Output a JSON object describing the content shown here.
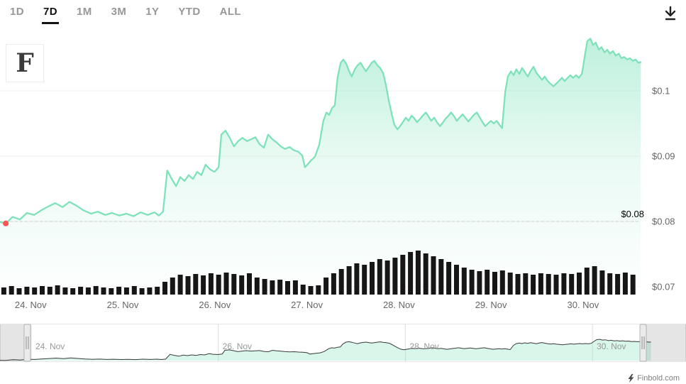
{
  "toolbar": {
    "ranges": [
      {
        "label": "1D",
        "active": false
      },
      {
        "label": "7D",
        "active": true
      },
      {
        "label": "1M",
        "active": false
      },
      {
        "label": "3M",
        "active": false
      },
      {
        "label": "1Y",
        "active": false
      },
      {
        "label": "YTD",
        "active": false
      },
      {
        "label": "ALL",
        "active": false
      }
    ]
  },
  "watermark": {
    "letter": "F"
  },
  "credit": {
    "text": "Finbold.com"
  },
  "colors": {
    "line": "#7de2ba",
    "fill_top": "rgba(125,226,186,0.50)",
    "fill_mid": "rgba(125,226,186,0.16)",
    "fill_bottom": "rgba(125,226,186,0.02)",
    "volume": "#161616",
    "marker": "#ff5353",
    "grid": "#f0f0f0",
    "dashed_line": "#cfcfcf",
    "plotline_label": "#000000",
    "axis_label": "#666666",
    "nav_line": "#3a3a3a",
    "nav_fill": "rgba(125,226,186,0.30)",
    "nav_grid": "#dedede",
    "nav_border": "#e6e6e6",
    "nav_mask": "rgba(0,0,0,0.10)",
    "nav_label": "#999999"
  },
  "chart_data": {
    "type": "line",
    "title": "",
    "legend": "off",
    "grid": "on",
    "y_axis_side": "right",
    "x_range_hours": [
      0,
      167
    ],
    "x_ticks": [
      {
        "t": 8,
        "label": "24. Nov"
      },
      {
        "t": 32,
        "label": "25. Nov"
      },
      {
        "t": 56,
        "label": "26. Nov"
      },
      {
        "t": 80,
        "label": "27. Nov"
      },
      {
        "t": 104,
        "label": "28. Nov"
      },
      {
        "t": 128,
        "label": "29. Nov"
      },
      {
        "t": 152,
        "label": "30. Nov"
      }
    ],
    "y_ticks": [
      {
        "price": 0.1,
        "label": "$0.1"
      },
      {
        "price": 0.09,
        "label": "$0.09"
      },
      {
        "price": 0.08,
        "label": "$0.08"
      },
      {
        "price": 0.07,
        "label": "$0.07"
      }
    ],
    "ylim": [
      0.07,
      0.109
    ],
    "plot_line": {
      "price": 0.08,
      "label": "$0.08"
    },
    "start_marker": {
      "t": 1.5,
      "price": 0.0797
    },
    "series": [
      {
        "name": "Price",
        "type": "area",
        "points": [
          [
            0,
            0.0799
          ],
          [
            1.5,
            0.0797
          ],
          [
            3.3,
            0.0807
          ],
          [
            5.2,
            0.0803
          ],
          [
            7,
            0.0813
          ],
          [
            8.9,
            0.081
          ],
          [
            10.7,
            0.0817
          ],
          [
            12.6,
            0.0823
          ],
          [
            14.4,
            0.0828
          ],
          [
            16.3,
            0.0822
          ],
          [
            18.1,
            0.083
          ],
          [
            20,
            0.0824
          ],
          [
            21.8,
            0.0817
          ],
          [
            23.7,
            0.0812
          ],
          [
            25.5,
            0.0815
          ],
          [
            27.4,
            0.081
          ],
          [
            29.2,
            0.0813
          ],
          [
            31.1,
            0.0809
          ],
          [
            32.9,
            0.0812
          ],
          [
            34.8,
            0.0808
          ],
          [
            36.6,
            0.0814
          ],
          [
            38.5,
            0.081
          ],
          [
            40.3,
            0.0814
          ],
          [
            41.4,
            0.0809
          ],
          [
            42.5,
            0.0815
          ],
          [
            43.6,
            0.0878
          ],
          [
            44.8,
            0.0865
          ],
          [
            45.9,
            0.0854
          ],
          [
            47,
            0.0868
          ],
          [
            48.1,
            0.0862
          ],
          [
            49.2,
            0.0871
          ],
          [
            50.3,
            0.0865
          ],
          [
            51.4,
            0.0876
          ],
          [
            52.5,
            0.0871
          ],
          [
            53.6,
            0.0887
          ],
          [
            54.7,
            0.088
          ],
          [
            55.9,
            0.0876
          ],
          [
            57,
            0.0883
          ],
          [
            57.7,
            0.0933
          ],
          [
            58.8,
            0.0939
          ],
          [
            59.9,
            0.0928
          ],
          [
            61,
            0.0915
          ],
          [
            62.1,
            0.0923
          ],
          [
            63.2,
            0.0928
          ],
          [
            64.4,
            0.0923
          ],
          [
            65.5,
            0.0926
          ],
          [
            66.6,
            0.0929
          ],
          [
            67.7,
            0.0918
          ],
          [
            68.8,
            0.0913
          ],
          [
            69.9,
            0.0933
          ],
          [
            71,
            0.0926
          ],
          [
            72.1,
            0.0921
          ],
          [
            73.2,
            0.0915
          ],
          [
            74.3,
            0.0911
          ],
          [
            75.5,
            0.0914
          ],
          [
            76.6,
            0.0909
          ],
          [
            77.7,
            0.0907
          ],
          [
            78.8,
            0.0901
          ],
          [
            79.5,
            0.0883
          ],
          [
            80.3,
            0.0888
          ],
          [
            81,
            0.0893
          ],
          [
            82.1,
            0.0899
          ],
          [
            83.2,
            0.0917
          ],
          [
            84.3,
            0.0954
          ],
          [
            85.1,
            0.0967
          ],
          [
            85.8,
            0.0963
          ],
          [
            86.6,
            0.0974
          ],
          [
            87.3,
            0.0978
          ],
          [
            88,
            0.102
          ],
          [
            88.8,
            0.1043
          ],
          [
            89.5,
            0.1048
          ],
          [
            90.3,
            0.1041
          ],
          [
            91,
            0.103
          ],
          [
            91.7,
            0.1022
          ],
          [
            92.5,
            0.1033
          ],
          [
            93.2,
            0.1039
          ],
          [
            94,
            0.1043
          ],
          [
            94.7,
            0.1036
          ],
          [
            95.4,
            0.103
          ],
          [
            96.2,
            0.1037
          ],
          [
            96.9,
            0.1043
          ],
          [
            97.6,
            0.1046
          ],
          [
            98.4,
            0.1039
          ],
          [
            99.1,
            0.1035
          ],
          [
            99.9,
            0.1027
          ],
          [
            100.6,
            0.1009
          ],
          [
            101.3,
            0.0987
          ],
          [
            102.1,
            0.0965
          ],
          [
            102.8,
            0.0948
          ],
          [
            103.6,
            0.0941
          ],
          [
            104.3,
            0.0946
          ],
          [
            105,
            0.0952
          ],
          [
            105.8,
            0.0959
          ],
          [
            106.5,
            0.0954
          ],
          [
            107.3,
            0.0962
          ],
          [
            108,
            0.0958
          ],
          [
            108.7,
            0.0952
          ],
          [
            109.5,
            0.0957
          ],
          [
            110.2,
            0.0962
          ],
          [
            111,
            0.0967
          ],
          [
            111.7,
            0.0961
          ],
          [
            112.4,
            0.0954
          ],
          [
            113.2,
            0.0959
          ],
          [
            113.9,
            0.0952
          ],
          [
            114.7,
            0.0946
          ],
          [
            115.4,
            0.0951
          ],
          [
            116.1,
            0.0957
          ],
          [
            116.9,
            0.0962
          ],
          [
            117.6,
            0.0967
          ],
          [
            118.4,
            0.0961
          ],
          [
            119.1,
            0.0954
          ],
          [
            119.8,
            0.0959
          ],
          [
            120.6,
            0.0964
          ],
          [
            121.3,
            0.0959
          ],
          [
            122.1,
            0.0953
          ],
          [
            122.8,
            0.0958
          ],
          [
            123.5,
            0.0963
          ],
          [
            124.3,
            0.0967
          ],
          [
            125,
            0.096
          ],
          [
            125.8,
            0.0952
          ],
          [
            126.5,
            0.0946
          ],
          [
            127.2,
            0.095
          ],
          [
            128,
            0.0954
          ],
          [
            128.7,
            0.095
          ],
          [
            129.5,
            0.0954
          ],
          [
            130.2,
            0.0948
          ],
          [
            130.9,
            0.0943
          ],
          [
            131.7,
            0.0998
          ],
          [
            132.4,
            0.1022
          ],
          [
            133.2,
            0.103
          ],
          [
            133.9,
            0.1024
          ],
          [
            134.6,
            0.1033
          ],
          [
            135.4,
            0.1026
          ],
          [
            136.1,
            0.1035
          ],
          [
            136.9,
            0.1028
          ],
          [
            137.6,
            0.1022
          ],
          [
            138.3,
            0.103
          ],
          [
            139.1,
            0.1037
          ],
          [
            139.8,
            0.1028
          ],
          [
            140.6,
            0.1022
          ],
          [
            141.3,
            0.1017
          ],
          [
            142,
            0.1022
          ],
          [
            142.8,
            0.1015
          ],
          [
            143.5,
            0.1011
          ],
          [
            144.3,
            0.1007
          ],
          [
            145,
            0.1011
          ],
          [
            145.7,
            0.1015
          ],
          [
            146.5,
            0.102
          ],
          [
            147.2,
            0.1015
          ],
          [
            148,
            0.102
          ],
          [
            148.7,
            0.1024
          ],
          [
            149.4,
            0.102
          ],
          [
            150.2,
            0.1024
          ],
          [
            150.9,
            0.102
          ],
          [
            151.7,
            0.1026
          ],
          [
            152.4,
            0.1052
          ],
          [
            153.1,
            0.1076
          ],
          [
            153.9,
            0.108
          ],
          [
            154.6,
            0.107
          ],
          [
            155.3,
            0.1074
          ],
          [
            156.1,
            0.1063
          ],
          [
            156.8,
            0.1067
          ],
          [
            157.6,
            0.1059
          ],
          [
            158.3,
            0.1063
          ],
          [
            159,
            0.1057
          ],
          [
            159.8,
            0.1061
          ],
          [
            160.5,
            0.1054
          ],
          [
            161.3,
            0.1057
          ],
          [
            162,
            0.105
          ],
          [
            162.7,
            0.1052
          ],
          [
            163.5,
            0.1048
          ],
          [
            164.2,
            0.105
          ],
          [
            165,
            0.1046
          ],
          [
            165.7,
            0.1048
          ],
          [
            166.4,
            0.1043
          ],
          [
            167,
            0.1044
          ]
        ]
      },
      {
        "name": "Volume",
        "type": "column",
        "unit": "relative",
        "points": [
          [
            1,
            10
          ],
          [
            3,
            12
          ],
          [
            5,
            9
          ],
          [
            7,
            11
          ],
          [
            9,
            10
          ],
          [
            11,
            12
          ],
          [
            13,
            11
          ],
          [
            15,
            13
          ],
          [
            17,
            10
          ],
          [
            19,
            9
          ],
          [
            21,
            11
          ],
          [
            23,
            10
          ],
          [
            25,
            12
          ],
          [
            27,
            10
          ],
          [
            29,
            9
          ],
          [
            31,
            11
          ],
          [
            33,
            10
          ],
          [
            35,
            12
          ],
          [
            37,
            9
          ],
          [
            39,
            10
          ],
          [
            41,
            11
          ],
          [
            43,
            18
          ],
          [
            45,
            24
          ],
          [
            47,
            28
          ],
          [
            49,
            26
          ],
          [
            51,
            29
          ],
          [
            53,
            27
          ],
          [
            55,
            30
          ],
          [
            57,
            28
          ],
          [
            59,
            31
          ],
          [
            61,
            29
          ],
          [
            63,
            27
          ],
          [
            65,
            30
          ],
          [
            67,
            24
          ],
          [
            69,
            22
          ],
          [
            71,
            20
          ],
          [
            73,
            21
          ],
          [
            75,
            19
          ],
          [
            77,
            20
          ],
          [
            79,
            14
          ],
          [
            81,
            12
          ],
          [
            83,
            13
          ],
          [
            85,
            24
          ],
          [
            87,
            30
          ],
          [
            89,
            36
          ],
          [
            91,
            40
          ],
          [
            93,
            44
          ],
          [
            95,
            42
          ],
          [
            97,
            46
          ],
          [
            99,
            50
          ],
          [
            101,
            48
          ],
          [
            103,
            52
          ],
          [
            105,
            56
          ],
          [
            107,
            60
          ],
          [
            109,
            62
          ],
          [
            111,
            58
          ],
          [
            113,
            54
          ],
          [
            115,
            50
          ],
          [
            117,
            46
          ],
          [
            119,
            42
          ],
          [
            121,
            38
          ],
          [
            123,
            35
          ],
          [
            125,
            33
          ],
          [
            127,
            35
          ],
          [
            129,
            32
          ],
          [
            131,
            34
          ],
          [
            133,
            31
          ],
          [
            135,
            29
          ],
          [
            137,
            30
          ],
          [
            139,
            28
          ],
          [
            141,
            30
          ],
          [
            143,
            29
          ],
          [
            145,
            28
          ],
          [
            147,
            30
          ],
          [
            149,
            29
          ],
          [
            151,
            31
          ],
          [
            153,
            38
          ],
          [
            155,
            40
          ],
          [
            157,
            34
          ],
          [
            159,
            30
          ],
          [
            161,
            29
          ],
          [
            163,
            31
          ],
          [
            165,
            28
          ]
        ]
      }
    ],
    "navigator": {
      "axis_range_hours": [
        0,
        176
      ],
      "selected_range_hours": [
        7,
        165
      ],
      "x_ticks": [
        {
          "t": 8,
          "label": "24. Nov"
        },
        {
          "t": 56,
          "label": "26. Nov"
        },
        {
          "t": 104,
          "label": "28. Nov"
        },
        {
          "t": 152,
          "label": "30. Nov"
        }
      ]
    }
  }
}
